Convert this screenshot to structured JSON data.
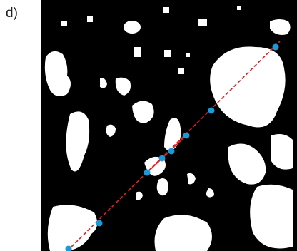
{
  "label": "d)"
}
